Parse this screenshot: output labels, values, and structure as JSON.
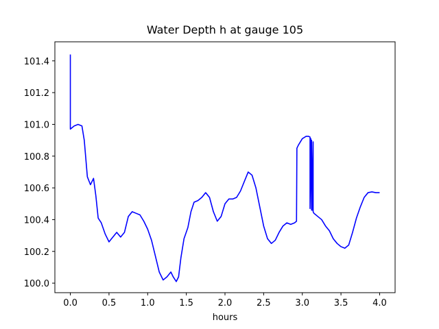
{
  "chart_data": {
    "type": "line",
    "title": "Water Depth h at gauge 105",
    "xlabel": "hours",
    "ylabel": "",
    "xlim": [
      -0.2,
      4.2
    ],
    "ylim": [
      99.94,
      101.52
    ],
    "xticks": [
      0.0,
      0.5,
      1.0,
      1.5,
      2.0,
      2.5,
      3.0,
      3.5,
      4.0
    ],
    "xtick_labels": [
      "0.0",
      "0.5",
      "1.0",
      "1.5",
      "2.0",
      "2.5",
      "3.0",
      "3.5",
      "4.0"
    ],
    "yticks": [
      100.0,
      100.2,
      100.4,
      100.6,
      100.8,
      101.0,
      101.2,
      101.4
    ],
    "ytick_labels": [
      "100.0",
      "100.2",
      "100.4",
      "100.6",
      "100.8",
      "101.0",
      "101.2",
      "101.4"
    ],
    "grid": false,
    "series": [
      {
        "color": "#0000ff",
        "x": [
          0.0,
          0.0,
          0.0,
          0.05,
          0.1,
          0.15,
          0.18,
          0.22,
          0.26,
          0.3,
          0.33,
          0.36,
          0.4,
          0.45,
          0.5,
          0.55,
          0.6,
          0.65,
          0.7,
          0.75,
          0.8,
          0.85,
          0.9,
          0.95,
          1.0,
          1.05,
          1.1,
          1.15,
          1.2,
          1.25,
          1.3,
          1.33,
          1.37,
          1.4,
          1.43,
          1.47,
          1.52,
          1.56,
          1.6,
          1.65,
          1.7,
          1.75,
          1.8,
          1.85,
          1.9,
          1.95,
          2.0,
          2.05,
          2.1,
          2.15,
          2.2,
          2.25,
          2.3,
          2.35,
          2.4,
          2.45,
          2.5,
          2.55,
          2.6,
          2.65,
          2.7,
          2.75,
          2.8,
          2.85,
          2.9,
          2.925,
          2.93,
          2.95,
          3.0,
          3.05,
          3.08,
          3.1,
          3.1,
          3.11,
          3.12,
          3.12,
          3.13,
          3.14,
          3.14,
          3.15,
          3.15,
          3.2,
          3.25,
          3.3,
          3.35,
          3.4,
          3.45,
          3.5,
          3.55,
          3.6,
          3.65,
          3.7,
          3.75,
          3.8,
          3.85,
          3.9,
          3.95,
          4.0
        ],
        "y": [
          101.44,
          100.97,
          100.97,
          100.99,
          101.0,
          100.99,
          100.9,
          100.67,
          100.62,
          100.66,
          100.55,
          100.41,
          100.38,
          100.31,
          100.26,
          100.29,
          100.32,
          100.29,
          100.32,
          100.42,
          100.45,
          100.44,
          100.43,
          100.39,
          100.34,
          100.27,
          100.17,
          100.07,
          100.02,
          100.04,
          100.07,
          100.04,
          100.01,
          100.04,
          100.16,
          100.28,
          100.35,
          100.45,
          100.51,
          100.52,
          100.54,
          100.57,
          100.54,
          100.45,
          100.39,
          100.42,
          100.5,
          100.53,
          100.53,
          100.54,
          100.58,
          100.64,
          100.7,
          100.68,
          100.6,
          100.48,
          100.36,
          100.28,
          100.25,
          100.27,
          100.32,
          100.36,
          100.38,
          100.37,
          100.38,
          100.39,
          100.85,
          100.87,
          100.91,
          100.925,
          100.925,
          100.92,
          100.47,
          100.91,
          100.46,
          100.9,
          100.46,
          100.89,
          100.45,
          100.44,
          100.44,
          100.42,
          100.4,
          100.36,
          100.33,
          100.28,
          100.25,
          100.23,
          100.22,
          100.24,
          100.32,
          100.41,
          100.48,
          100.54,
          100.57,
          100.575,
          100.57,
          100.57
        ]
      }
    ]
  }
}
